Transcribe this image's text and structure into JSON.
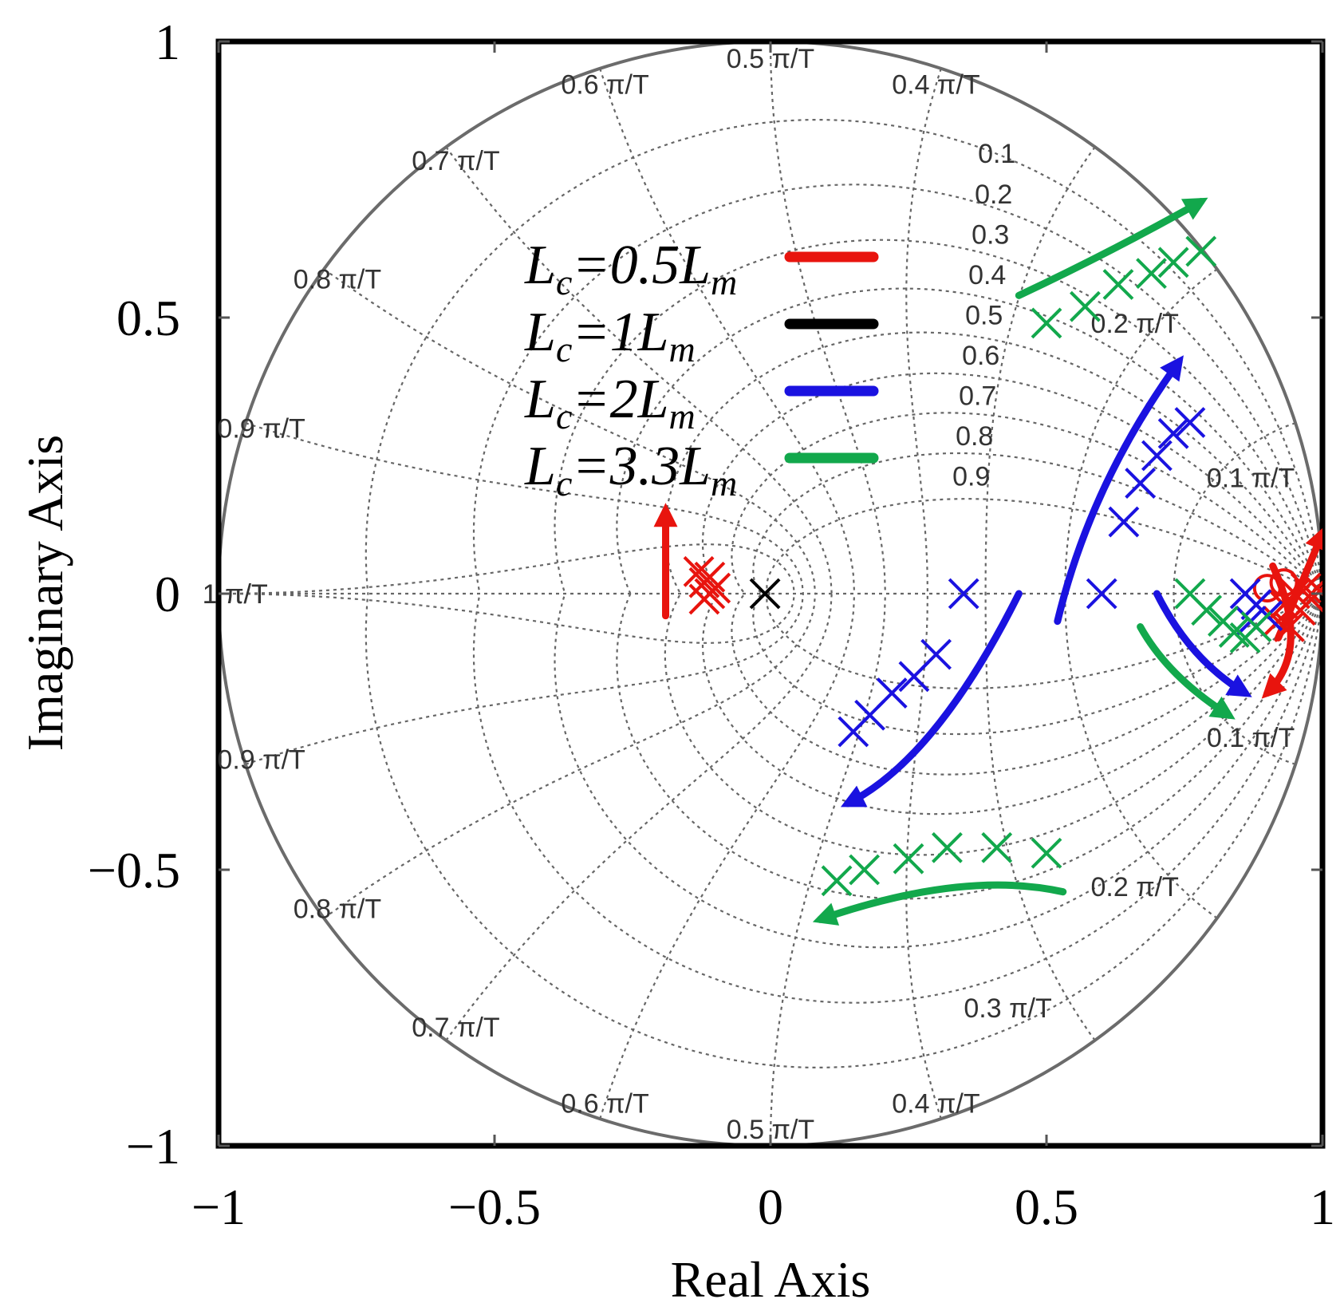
{
  "chart_data": {
    "type": "scatter",
    "title": "",
    "xlabel": "Real Axis",
    "ylabel": "Imaginary Axis",
    "xlim": [
      -1,
      1
    ],
    "ylim": [
      -1,
      1
    ],
    "grid": true,
    "x_ticks": [
      {
        "value": -1,
        "label": "−1"
      },
      {
        "value": -0.5,
        "label": "−0.5"
      },
      {
        "value": 0,
        "label": "0"
      },
      {
        "value": 0.5,
        "label": "0.5"
      },
      {
        "value": 1,
        "label": "1"
      }
    ],
    "y_ticks": [
      {
        "value": 1,
        "label": "1"
      },
      {
        "value": 0.5,
        "label": "0.5"
      },
      {
        "value": 0,
        "label": "0"
      },
      {
        "value": -0.5,
        "label": "−0.5"
      },
      {
        "value": -1,
        "label": "−1"
      }
    ],
    "grid_damping": {
      "values": [
        0.1,
        0.2,
        0.3,
        0.4,
        0.5,
        0.6,
        0.7,
        0.8,
        0.9
      ],
      "labels": [
        "0.1",
        "0.2",
        "0.3",
        "0.4",
        "0.5",
        "0.6",
        "0.7",
        "0.8",
        "0.9"
      ]
    },
    "grid_frequency": {
      "values": [
        0.1,
        0.2,
        0.3,
        0.4,
        0.5,
        0.6,
        0.7,
        0.8,
        0.9,
        1.0
      ],
      "labels": [
        "0.1",
        "0.2",
        "0.3",
        "0.4",
        "0.5",
        "0.6",
        "0.7",
        "0.8",
        "0.9",
        "1"
      ],
      "suffix": "π/T",
      "upper_labels": [
        0.1,
        0.2,
        0.4,
        0.5,
        0.6,
        0.7,
        0.8,
        0.9,
        1.0
      ],
      "lower_labels": [
        0.1,
        0.2,
        0.3,
        0.4,
        0.5,
        0.6,
        0.7,
        0.8,
        0.9,
        1.0
      ]
    },
    "legend": {
      "position": "upper-left inside",
      "entries": [
        {
          "name": "Lc=0.5Lm",
          "prefix": "L",
          "sub1": "c",
          "mid": "=0.5L",
          "sub2": "m",
          "color": "#e8140e"
        },
        {
          "name": "Lc=1Lm",
          "prefix": "L",
          "sub1": "c",
          "mid": "=1L",
          "sub2": "m",
          "color": "#000000"
        },
        {
          "name": "Lc=2Lm",
          "prefix": "L",
          "sub1": "c",
          "mid": "=2L",
          "sub2": "m",
          "color": "#1a12e0"
        },
        {
          "name": "Lc=3.3Lm",
          "prefix": "L",
          "sub1": "c",
          "mid": "=3.3L",
          "sub2": "m",
          "color": "#12a84c"
        }
      ]
    },
    "series": [
      {
        "name": "Lc=0.5Lm",
        "color": "#e8140e",
        "poles": [
          [
            -0.13,
            0.04
          ],
          [
            -0.12,
            0.02
          ],
          [
            -0.11,
            0.0
          ],
          [
            -0.12,
            -0.01
          ],
          [
            -0.11,
            0.03
          ],
          [
            -0.1,
            0.01
          ],
          [
            0.93,
            -0.02
          ],
          [
            0.95,
            0.0
          ],
          [
            0.96,
            -0.03
          ],
          [
            0.97,
            0.01
          ],
          [
            0.98,
            -0.01
          ],
          [
            0.99,
            0.01
          ],
          [
            0.92,
            -0.05
          ],
          [
            0.94,
            -0.06
          ]
        ],
        "zeros": [
          [
            0.9,
            0.01
          ],
          [
            0.93,
            0.02
          ]
        ],
        "arrows": [
          [
            [
              -0.19,
              -0.04
            ],
            [
              -0.19,
              0.15
            ]
          ],
          [
            [
              0.92,
              -0.08
            ],
            [
              0.98,
              0.06
            ],
            [
              1.0,
              0.11
            ]
          ],
          [
            [
              0.91,
              0.05
            ],
            [
              0.98,
              -0.1
            ],
            [
              0.9,
              -0.18
            ]
          ]
        ]
      },
      {
        "name": "Lc=1Lm",
        "color": "#000000",
        "poles": [
          [
            -0.01,
            0.0
          ]
        ],
        "zeros": [],
        "arrows": []
      },
      {
        "name": "Lc=2Lm",
        "color": "#1a12e0",
        "poles": [
          [
            0.15,
            -0.25
          ],
          [
            0.18,
            -0.22
          ],
          [
            0.22,
            -0.18
          ],
          [
            0.26,
            -0.15
          ],
          [
            0.3,
            -0.11
          ],
          [
            0.35,
            0.0
          ],
          [
            0.6,
            0.0
          ],
          [
            0.64,
            0.13
          ],
          [
            0.67,
            0.2
          ],
          [
            0.7,
            0.25
          ],
          [
            0.73,
            0.29
          ],
          [
            0.76,
            0.31
          ],
          [
            0.86,
            0.0
          ],
          [
            0.88,
            -0.02
          ],
          [
            0.9,
            -0.04
          ],
          [
            0.87,
            -0.05
          ]
        ],
        "zeros": [],
        "arrows": [
          [
            [
              0.45,
              0.0
            ],
            [
              0.3,
              -0.3
            ],
            [
              0.14,
              -0.38
            ]
          ],
          [
            [
              0.52,
              -0.05
            ],
            [
              0.58,
              0.2
            ],
            [
              0.74,
              0.42
            ]
          ],
          [
            [
              0.7,
              0.0
            ],
            [
              0.76,
              -0.12
            ],
            [
              0.86,
              -0.18
            ]
          ]
        ]
      },
      {
        "name": "Lc=3.3Lm",
        "color": "#12a84c",
        "poles": [
          [
            0.5,
            0.49
          ],
          [
            0.57,
            0.52
          ],
          [
            0.63,
            0.56
          ],
          [
            0.69,
            0.58
          ],
          [
            0.73,
            0.6
          ],
          [
            0.78,
            0.62
          ],
          [
            0.12,
            -0.52
          ],
          [
            0.17,
            -0.5
          ],
          [
            0.25,
            -0.48
          ],
          [
            0.32,
            -0.46
          ],
          [
            0.41,
            -0.46
          ],
          [
            0.5,
            -0.47
          ],
          [
            0.76,
            0.0
          ],
          [
            0.79,
            -0.03
          ],
          [
            0.82,
            -0.05
          ],
          [
            0.84,
            -0.07
          ],
          [
            0.86,
            -0.08
          ],
          [
            0.88,
            -0.06
          ]
        ],
        "zeros": [],
        "arrows": [
          [
            [
              0.45,
              0.54
            ],
            [
              0.62,
              0.62
            ],
            [
              0.78,
              0.71
            ]
          ],
          [
            [
              0.53,
              -0.54
            ],
            [
              0.35,
              -0.5
            ],
            [
              0.09,
              -0.59
            ]
          ],
          [
            [
              0.67,
              -0.06
            ],
            [
              0.72,
              -0.15
            ],
            [
              0.83,
              -0.22
            ]
          ]
        ]
      }
    ]
  }
}
